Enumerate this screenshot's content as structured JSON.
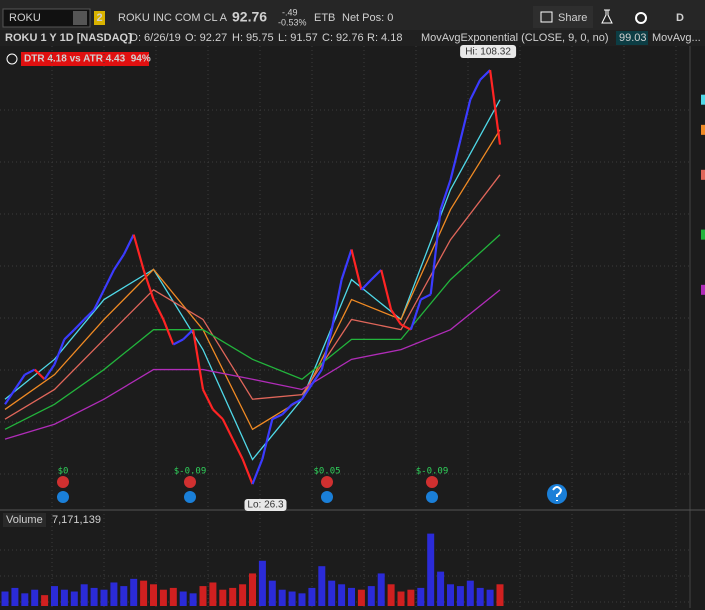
{
  "toolbar": {
    "symbol": "ROKU",
    "link": "2",
    "description": "ROKU INC COM CL A",
    "last": "92.76",
    "change": "-.49",
    "change_pct": "-0.53%",
    "etb": "ETB",
    "net_pos": "Net Pos: 0",
    "share": "Share",
    "aggregation": "D"
  },
  "info_bar": {
    "title": "ROKU 1 Y 1D [NASDAQ]",
    "date": "D: 6/26/19",
    "open": "O: 92.27",
    "high": "H: 95.75",
    "low": "L: 91.57",
    "close": "C: 92.76",
    "range": "R: 4.18",
    "study": "MovAvgExponential (CLOSE, 9, 0, no)",
    "study_value": "99.03",
    "study2": "MovAvg..."
  },
  "alert": "DTR 4.18 vs ATR 4.43  94%",
  "price_chart": {
    "type": "line",
    "ylim": [
      23,
      113
    ],
    "close": [
      42.7,
      45.6,
      48.5,
      49.5,
      47.6,
      50.5,
      55.4,
      57.3,
      59.3,
      61.2,
      65.1,
      69.0,
      72.0,
      75.9,
      69.0,
      63.2,
      59.3,
      54.4,
      55.4,
      57.3,
      45.6,
      41.7,
      39.8,
      35.9,
      32.0,
      27.1,
      32.0,
      39.8,
      40.7,
      42.7,
      43.7,
      46.6,
      49.5,
      57.3,
      67.1,
      73.0,
      65.1,
      67.1,
      69.0,
      61.2,
      58.3,
      57.3,
      63.2,
      64.2,
      80.8,
      86.6,
      94.4,
      102.3,
      106.2,
      108.1,
      93.5
    ],
    "moving_averages": [
      {
        "color": "#4fd8e8",
        "values": [
          43.7,
          51.5,
          63.2,
          69.1,
          53.4,
          31.9,
          43.7,
          67.1,
          59.3,
          84.7,
          102.3
        ]
      },
      {
        "color": "#f08a24",
        "values": [
          41.7,
          48.5,
          59.3,
          69.1,
          57.3,
          37.8,
          43.7,
          63.2,
          59.3,
          80.8,
          96.4
        ]
      },
      {
        "color": "#e0665a",
        "values": [
          39.8,
          45.6,
          55.4,
          65.1,
          59.3,
          43.7,
          44.6,
          59.3,
          57.3,
          74.9,
          87.6
        ]
      },
      {
        "color": "#22b43c",
        "values": [
          37.8,
          42.7,
          49.5,
          57.3,
          57.3,
          51.5,
          47.6,
          55.4,
          55.4,
          67.1,
          75.9
        ]
      },
      {
        "color": "#b02cb8",
        "values": [
          35.9,
          38.8,
          43.7,
          49.5,
          49.5,
          47.6,
          45.6,
          51.5,
          53.4,
          57.3,
          65.1
        ]
      }
    ],
    "high_label": "Hi: 108.32",
    "low_label": "Lo: 26.3",
    "events": [
      "$0",
      "$-0.09",
      "$0.05",
      "$-0.09"
    ]
  },
  "volume": {
    "title": "Volume",
    "last": "7,171,139",
    "ylim": [
      0,
      42
    ],
    "values": [
      8,
      10,
      7,
      9,
      6,
      11,
      9,
      8,
      12,
      10,
      9,
      13,
      11,
      15,
      14,
      12,
      9,
      10,
      8,
      7,
      11,
      13,
      9,
      10,
      12,
      18,
      25,
      14,
      9,
      8,
      7,
      10,
      22,
      14,
      12,
      10,
      9,
      11,
      18,
      12,
      8,
      9,
      10,
      40,
      19,
      12,
      11,
      14,
      10,
      9,
      12
    ]
  }
}
